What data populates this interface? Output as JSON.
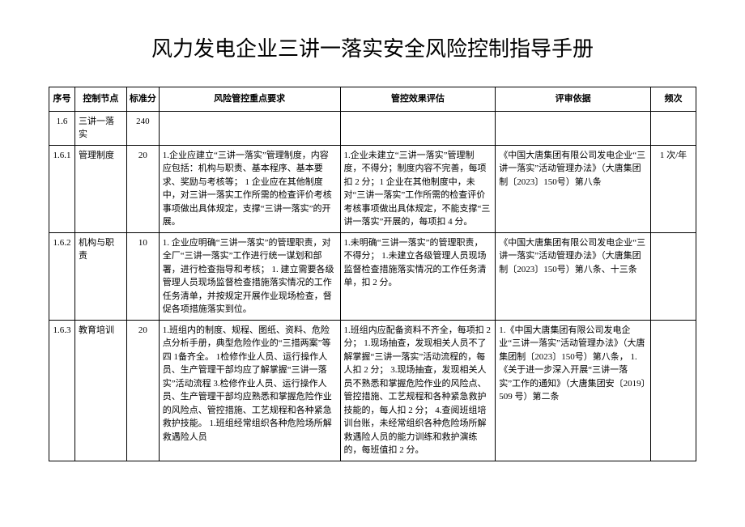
{
  "title": "风力发电企业三讲一落实安全风险控制指导手册",
  "columns": {
    "seq": "序号",
    "node": "控制节点",
    "score": "标准分",
    "req": "风险管控重点要求",
    "eval": "管控效果评估",
    "basis": "评审依据",
    "freq": "频次"
  },
  "rows": [
    {
      "seq": "1.6",
      "node": "三讲一落实",
      "score": "240",
      "req": "",
      "eval": "",
      "basis": "",
      "freq": ""
    },
    {
      "seq": "1.6.1",
      "node": "管理制度",
      "score": "20",
      "req": "1.企业应建立“三讲一落实”管理制度，内容应包括：机构与职责、基本程序、基本要求、奖励与考核等；\n1 企业应在其他制度中，对三讲一落实工作所需的检查评价考核事项做出具体规定，支撑“三讲一落实”的开展。",
      "eval": "1.企业未建立“三讲一落实”管理制度，不得分；制度内容不完善，每项扣 2 分；1 企业在其他制度中，未对“三讲一落实”工作所需的检查评价考核事项做出具体规定，不能支撑“三讲一落实”开展的，每项扣 4 分。",
      "basis": "《中国大唐集团有限公司发电企业“三讲一落实”活动管理办法》（大唐集团制〔2023〕150号）第八条",
      "freq": "1 次/年"
    },
    {
      "seq": "1.6.2",
      "node": "机构与职责",
      "score": "10",
      "req": "1. 企业应明确“三讲一落实”的管理职责，对全厂“三讲一落实”工作进行统一谋划和部署，进行检查指导和考核；\n1. 建立需要各级管理人员现场监督检查措施落实情况的工作任务清单，并按规定开展作业现场检查，督促各项措施落实到位。",
      "eval": "1.未明确“三讲一落实”的管理职责，不得分；\n1.未建立各级管理人员现场监督检查措施落实情况的工作任务清单，扣 2 分。",
      "basis": "《中国大唐集团有限公司发电企业“三讲一落实”活动管理办法》（大唐集团制〔2023〕150号）第八条、十三条",
      "freq": ""
    },
    {
      "seq": "1.6.3",
      "node": "教育培训",
      "score": "20",
      "req": "1.班组内的制度、规程、图纸、资料、危险点分析手册，典型危险作业的“三措两案”等四 1备齐全。\n1检修作业人员、运行操作人员、生产管理干部均应了解掌握“三讲一落实”活动流程 3.检修作业人员、运行操作人员、生产管理干部均应熟悉和掌握危险作业的风险点、管控措施、工艺规程和各种紧急救护技能。\n1.班组经常组织各种危险场所解救遇险人员",
      "eval": "1.班组内应配备资料不齐全，每项扣 2 分；\n1.现场抽查，发现相关人员不了解掌握“三讲一落实”活动流程的，每人扣 2 分；\n3.现场抽查，发现相关人员不熟悉和掌握危险作业的风险点、管控措施、工艺规程和各种紧急救护技能的，每人扣 2 分；\n4.查阅班组培训台账，未经常组织各种危险场所解救遇险人员的能力训练和救护演练的，每班值扣 2 分。",
      "basis": "1.《中国大唐集团有限公司发电企业“三讲一落实”活动管理办法》（大唐集团制〔2023〕150号）第八条，\n1.《关于进一步深入开展“三讲一落实”工作的通知》（大唐集团安〔2019〕509 号）第二条",
      "freq": ""
    }
  ],
  "style": {
    "background": "#ffffff",
    "border_color": "#000000",
    "title_fontsize": 26,
    "body_fontsize": 11,
    "font_family": "SimSun"
  }
}
